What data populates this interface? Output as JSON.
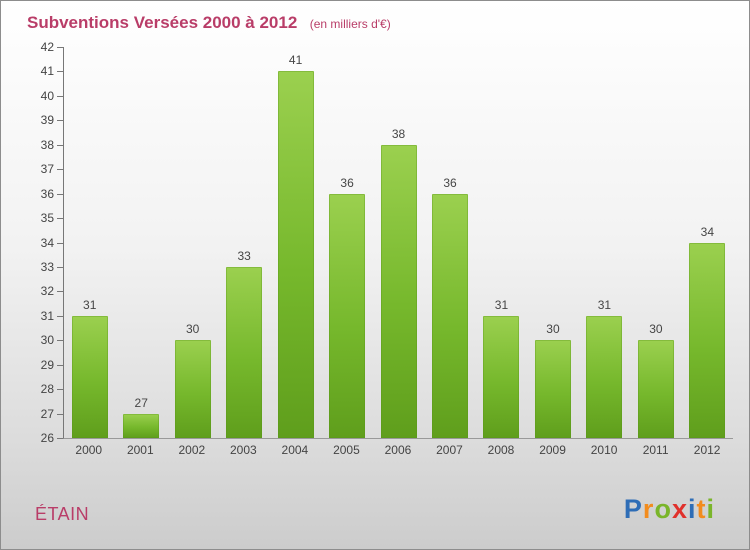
{
  "title": "Subventions Versées 2000 à 2012",
  "subtitle": "(en milliers d'€)",
  "footer": {
    "place": "ÉTAIN"
  },
  "logo": {
    "name": "Proxiti",
    "letters": [
      {
        "ch": "P",
        "color": "#2e6db6"
      },
      {
        "ch": "r",
        "color": "#f28c1e"
      },
      {
        "ch": "o",
        "color": "#7ab52a"
      },
      {
        "ch": "x",
        "color": "#e0312c"
      },
      {
        "ch": "i",
        "color": "#2e6db6"
      },
      {
        "ch": "t",
        "color": "#f28c1e"
      },
      {
        "ch": "i",
        "color": "#7ab52a"
      }
    ]
  },
  "colors": {
    "title": "#b93d68",
    "bar_top": "#9bd04f",
    "bar_bottom": "#5f9e1c",
    "axis_text": "#444444"
  },
  "chart_data": {
    "type": "bar",
    "title": "Subventions Versées 2000 à 2012",
    "subtitle": "(en milliers d'€)",
    "categories": [
      "2000",
      "2001",
      "2002",
      "2003",
      "2004",
      "2005",
      "2006",
      "2007",
      "2008",
      "2009",
      "2010",
      "2011",
      "2012"
    ],
    "values": [
      31,
      27,
      30,
      33,
      41,
      36,
      38,
      36,
      31,
      30,
      31,
      30,
      34
    ],
    "xlabel": "",
    "ylabel": "",
    "ylim": [
      26,
      42
    ],
    "ytick_step": 1,
    "grid": false,
    "legend": false
  }
}
